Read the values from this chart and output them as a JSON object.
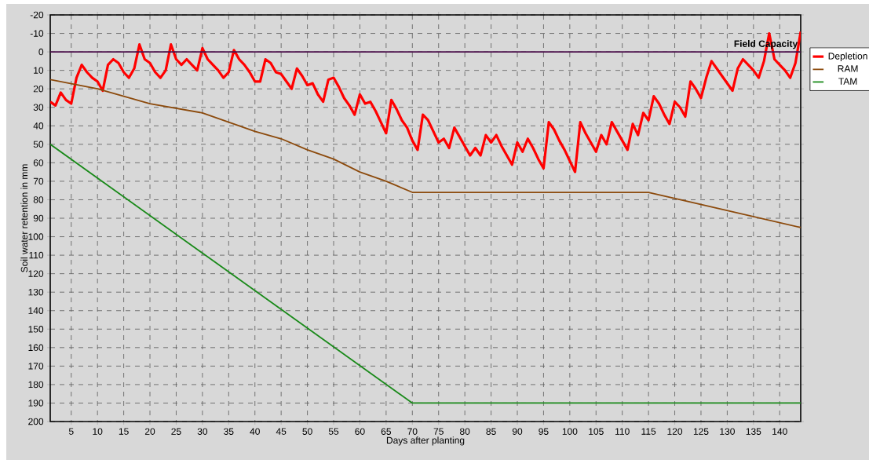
{
  "chart_data": {
    "type": "line",
    "xlabel": "Days after planting",
    "ylabel": "Soil water retention in mm",
    "xlim": [
      1,
      144
    ],
    "ylim": [
      200,
      -20
    ],
    "xticks": [
      5,
      10,
      15,
      20,
      25,
      30,
      35,
      40,
      45,
      50,
      55,
      60,
      65,
      70,
      75,
      80,
      85,
      90,
      95,
      100,
      105,
      110,
      115,
      120,
      125,
      130,
      135,
      140
    ],
    "yticks": [
      -20,
      -10,
      0,
      10,
      20,
      30,
      40,
      50,
      60,
      70,
      80,
      90,
      100,
      110,
      120,
      130,
      140,
      150,
      160,
      170,
      180,
      190,
      200
    ],
    "grid": true,
    "legend": "right",
    "line_style": "solid",
    "ref_lines": [
      {
        "axis": "y",
        "value": 0,
        "label": "Field Capacity",
        "color": "#4b0f4b"
      }
    ],
    "series": [
      {
        "name": "Depletion",
        "color": "#ff0000",
        "x": [
          1,
          2,
          3,
          4,
          5,
          6,
          7,
          8,
          9,
          10,
          11,
          12,
          13,
          14,
          15,
          16,
          17,
          18,
          19,
          20,
          21,
          22,
          23,
          24,
          25,
          26,
          27,
          28,
          29,
          30,
          31,
          32,
          33,
          34,
          35,
          36,
          37,
          38,
          39,
          40,
          41,
          42,
          43,
          44,
          45,
          46,
          47,
          48,
          49,
          50,
          51,
          52,
          53,
          54,
          55,
          56,
          57,
          58,
          59,
          60,
          61,
          62,
          63,
          64,
          65,
          66,
          67,
          68,
          69,
          70,
          71,
          72,
          73,
          74,
          75,
          76,
          77,
          78,
          79,
          80,
          81,
          82,
          83,
          84,
          85,
          86,
          87,
          88,
          89,
          90,
          91,
          92,
          93,
          94,
          95,
          96,
          97,
          98,
          99,
          100,
          101,
          102,
          103,
          104,
          105,
          106,
          107,
          108,
          109,
          110,
          111,
          112,
          113,
          114,
          115,
          116,
          117,
          118,
          119,
          120,
          121,
          122,
          123,
          124,
          125,
          126,
          127,
          128,
          129,
          130,
          131,
          132,
          133,
          134,
          135,
          136,
          137,
          138,
          139,
          140,
          141,
          142,
          143,
          144
        ],
        "values": [
          27,
          29,
          22,
          26,
          28,
          14,
          7,
          11,
          14,
          16,
          21,
          7,
          4,
          6,
          11,
          14,
          9,
          -4,
          4,
          6,
          11,
          14,
          10,
          -4,
          4,
          7,
          4,
          7,
          10,
          -2,
          4,
          7,
          10,
          14,
          11,
          -1,
          4,
          7,
          11,
          16,
          16,
          4,
          6,
          11,
          12,
          16,
          20,
          9,
          13,
          18,
          17,
          23,
          27,
          15,
          14,
          19,
          25,
          29,
          34,
          23,
          28,
          27,
          32,
          38,
          44,
          26,
          31,
          37,
          41,
          48,
          53,
          34,
          37,
          43,
          49,
          47,
          52,
          41,
          46,
          51,
          56,
          52,
          56,
          45,
          49,
          45,
          51,
          56,
          61,
          49,
          54,
          47,
          52,
          58,
          63,
          38,
          42,
          48,
          53,
          59,
          65,
          38,
          44,
          49,
          54,
          45,
          50,
          38,
          43,
          48,
          53,
          39,
          45,
          33,
          37,
          24,
          28,
          34,
          39,
          27,
          30,
          35,
          16,
          20,
          25,
          14,
          5,
          9,
          13,
          17,
          21,
          9,
          4,
          7,
          10,
          14,
          5,
          -10,
          4,
          7,
          10,
          14,
          6,
          -11
        ]
      },
      {
        "name": "RAM",
        "color": "#8c4a0c",
        "x": [
          1,
          10,
          20,
          30,
          40,
          45,
          50,
          55,
          60,
          65,
          70,
          115,
          144
        ],
        "values": [
          15,
          20,
          28,
          33,
          43,
          47,
          53,
          58,
          65,
          70,
          76,
          76,
          95
        ]
      },
      {
        "name": "TAM",
        "color": "#1a8a1a",
        "x": [
          1,
          70,
          144
        ],
        "values": [
          50,
          190,
          190
        ]
      }
    ]
  }
}
